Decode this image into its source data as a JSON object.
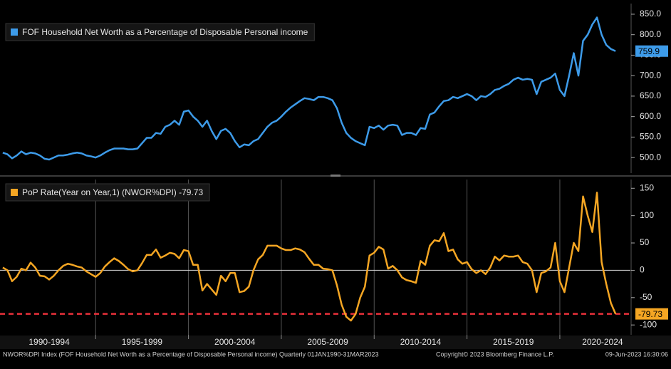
{
  "chart_data": {
    "type": "line",
    "x": [
      1990,
      1990.25,
      1990.5,
      1990.75,
      1991,
      1991.25,
      1991.5,
      1991.75,
      1992,
      1992.25,
      1992.5,
      1992.75,
      1993,
      1993.25,
      1993.5,
      1993.75,
      1994,
      1994.25,
      1994.5,
      1994.75,
      1995,
      1995.25,
      1995.5,
      1995.75,
      1996,
      1996.25,
      1996.5,
      1996.75,
      1997,
      1997.25,
      1997.5,
      1997.75,
      1998,
      1998.25,
      1998.5,
      1998.75,
      1999,
      1999.25,
      1999.5,
      1999.75,
      2000,
      2000.25,
      2000.5,
      2000.75,
      2001,
      2001.25,
      2001.5,
      2001.75,
      2002,
      2002.25,
      2002.5,
      2002.75,
      2003,
      2003.25,
      2003.5,
      2003.75,
      2004,
      2004.25,
      2004.5,
      2004.75,
      2005,
      2005.25,
      2005.5,
      2005.75,
      2006,
      2006.25,
      2006.5,
      2006.75,
      2007,
      2007.25,
      2007.5,
      2007.75,
      2008,
      2008.25,
      2008.5,
      2008.75,
      2009,
      2009.25,
      2009.5,
      2009.75,
      2010,
      2010.25,
      2010.5,
      2010.75,
      2011,
      2011.25,
      2011.5,
      2011.75,
      2012,
      2012.25,
      2012.5,
      2012.75,
      2013,
      2013.25,
      2013.5,
      2013.75,
      2014,
      2014.25,
      2014.5,
      2014.75,
      2015,
      2015.25,
      2015.5,
      2015.75,
      2016,
      2016.25,
      2016.5,
      2016.75,
      2017,
      2017.25,
      2017.5,
      2017.75,
      2018,
      2018.25,
      2018.5,
      2018.75,
      2019,
      2019.25,
      2019.5,
      2019.75,
      2020,
      2020.25,
      2020.5,
      2020.75,
      2021,
      2021.25,
      2021.5,
      2021.75,
      2022,
      2022.25,
      2022.5,
      2022.75,
      2023
    ],
    "xlim": [
      1989.85,
      2023.8
    ],
    "xticks": [
      {
        "value": 1992.5,
        "label": "1990-1994"
      },
      {
        "value": 1997.5,
        "label": "1995-1999"
      },
      {
        "value": 2002.5,
        "label": "2000-2004"
      },
      {
        "value": 2007.5,
        "label": "2005-2009"
      },
      {
        "value": 2012.5,
        "label": "2010-2014"
      },
      {
        "value": 2017.5,
        "label": "2015-2019"
      },
      {
        "value": 2022.3,
        "label": "2020-2024"
      }
    ],
    "xgrid": [
      1995,
      2000,
      2005,
      2010,
      2015,
      2020
    ],
    "ylim": [
      462,
      876
    ],
    "yticks": [
      {
        "value": 500,
        "label": "500.0"
      },
      {
        "value": 550,
        "label": "550.0"
      },
      {
        "value": 600,
        "label": "600.0"
      },
      {
        "value": 650,
        "label": "650.0"
      },
      {
        "value": 700,
        "label": "700.0"
      },
      {
        "value": 750,
        "label": "750.0"
      },
      {
        "value": 800,
        "label": "800.0"
      },
      {
        "value": 850,
        "label": "850.0"
      }
    ],
    "y2lim": [
      -118,
      166
    ],
    "y2ticks": [
      150,
      100,
      50,
      0,
      -50,
      -100
    ],
    "series": [
      {
        "name": "FOF Household Net Worth as a Percentage of Disposable Personal income",
        "color": "#3d9be9",
        "values": [
          512,
          508,
          498,
          505,
          515,
          508,
          512,
          510,
          505,
          497,
          495,
          500,
          505,
          505,
          507,
          510,
          512,
          510,
          505,
          503,
          500,
          505,
          512,
          518,
          522,
          522,
          522,
          520,
          520,
          522,
          535,
          548,
          548,
          560,
          558,
          575,
          580,
          590,
          580,
          612,
          615,
          600,
          590,
          575,
          590,
          565,
          545,
          565,
          570,
          560,
          540,
          525,
          532,
          530,
          540,
          545,
          560,
          575,
          585,
          590,
          600,
          612,
          622,
          630,
          638,
          645,
          643,
          640,
          648,
          648,
          645,
          640,
          620,
          585,
          560,
          548,
          540,
          535,
          530,
          575,
          572,
          578,
          568,
          578,
          580,
          578,
          555,
          560,
          560,
          555,
          572,
          570,
          605,
          610,
          625,
          638,
          640,
          648,
          645,
          650,
          655,
          650,
          640,
          650,
          648,
          655,
          665,
          668,
          675,
          680,
          690,
          695,
          690,
          692,
          690,
          655,
          685,
          690,
          695,
          705,
          665,
          650,
          700,
          755,
          700,
          785,
          800,
          825,
          842,
          800,
          775,
          765,
          759.9
        ]
      },
      {
        "name": "PoP Rate(Year on Year,1) (NWOR%DPI) -79.73",
        "color": "#f5a623",
        "axis": "y2",
        "last_value_line": "#e8303a",
        "values": [
          5,
          0,
          -20,
          -12,
          3,
          0,
          14,
          5,
          -10,
          -11,
          -17,
          -10,
          0,
          8,
          12,
          10,
          7,
          5,
          -2,
          -7,
          -12,
          -5,
          7,
          15,
          22,
          17,
          10,
          2,
          -2,
          0,
          13,
          28,
          28,
          38,
          23,
          27,
          32,
          30,
          22,
          37,
          35,
          10,
          10,
          -37,
          -25,
          -35,
          -45,
          -10,
          -20,
          -5,
          -5,
          -40,
          -38,
          -30,
          0,
          20,
          28,
          45,
          45,
          45,
          40,
          37,
          37,
          40,
          38,
          33,
          21,
          10,
          10,
          3,
          2,
          0,
          -28,
          -63,
          -85,
          -92,
          -80,
          -50,
          -30,
          27,
          32,
          43,
          38,
          3,
          8,
          0,
          -13,
          -18,
          -20,
          -23,
          17,
          10,
          45,
          55,
          53,
          68,
          35,
          38,
          20,
          12,
          15,
          2,
          -5,
          0,
          -7,
          5,
          25,
          18,
          27,
          25,
          25,
          27,
          15,
          12,
          0,
          -40,
          -5,
          -2,
          5,
          50,
          -20,
          -40,
          5,
          50,
          35,
          135,
          100,
          70,
          142,
          15,
          -25,
          -60,
          -79.73
        ]
      }
    ]
  },
  "footer": {
    "left": "NWOR%DPI Index (FOF Household Net Worth as a Percentage of Disposable Personal income)  Quarterly 01JAN1990-31MAR2023",
    "center": "Copyright© 2023 Bloomberg Finance L.P.",
    "right": "09-Jun-2023 16:30:06"
  }
}
